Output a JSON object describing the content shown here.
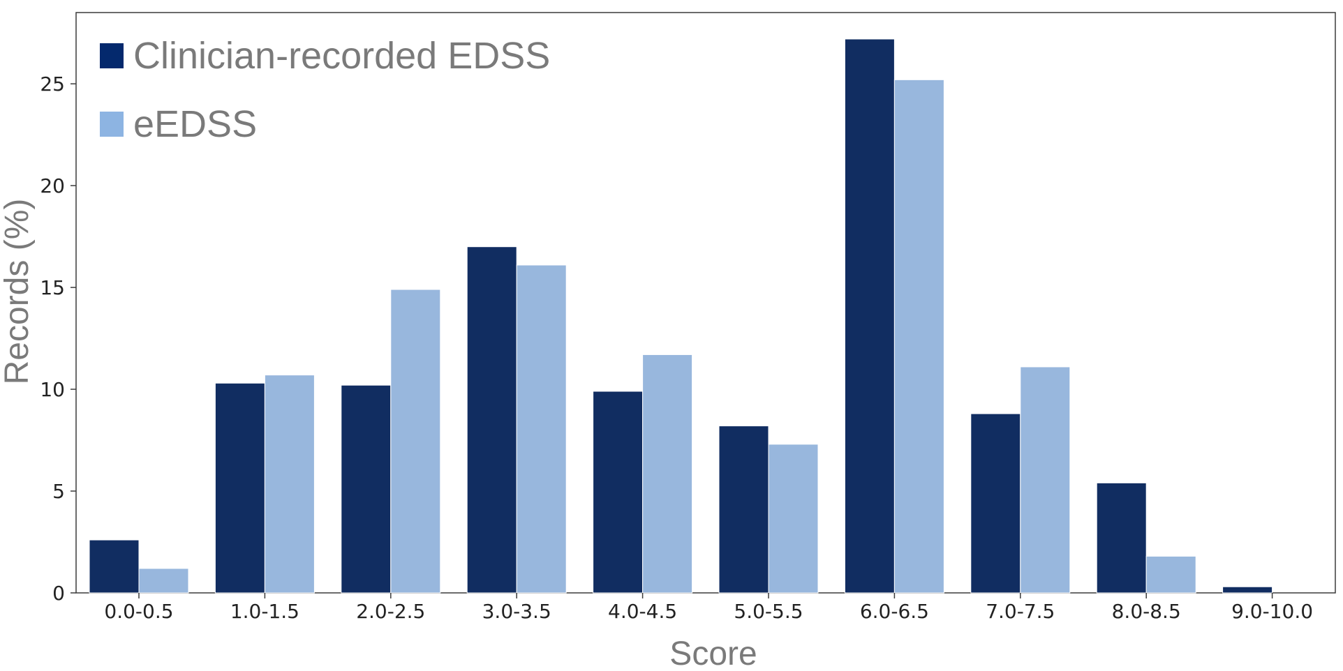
{
  "chart_data": {
    "type": "bar",
    "title": "",
    "xlabel": "Score",
    "ylabel": "Records (%)",
    "categories": [
      "0.0-0.5",
      "1.0-1.5",
      "2.0-2.5",
      "3.0-3.5",
      "4.0-4.5",
      "5.0-5.5",
      "6.0-6.5",
      "7.0-7.5",
      "8.0-8.5",
      "9.0-10.0"
    ],
    "series": [
      {
        "name": "Clinician-recorded EDSS",
        "color": "#112d61",
        "legend_color": "#04296d",
        "values": [
          2.6,
          10.3,
          10.2,
          17.0,
          9.9,
          8.2,
          27.2,
          8.8,
          5.4,
          0.3
        ]
      },
      {
        "name": "eEDSS",
        "color": "#98b7dd",
        "legend_color": "#8db4e2",
        "values": [
          1.2,
          10.7,
          14.9,
          16.1,
          11.7,
          7.3,
          25.2,
          11.1,
          1.8,
          0.0
        ]
      }
    ],
    "ylim": [
      0,
      28.5
    ],
    "yticks": [
      "0",
      "5",
      "10",
      "15",
      "20",
      "25"
    ],
    "grid": false,
    "legend_position": "top-left"
  }
}
